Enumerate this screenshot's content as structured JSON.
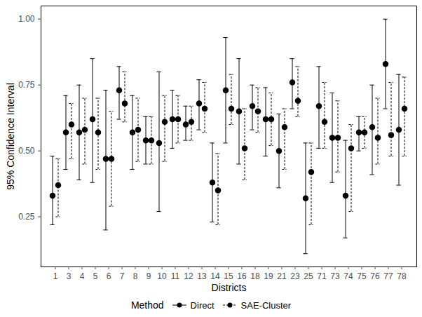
{
  "chart_data": {
    "type": "errorbar",
    "xlabel": "Districts",
    "ylabel": "95% Confidence Interval",
    "legend_title": "Method",
    "legend": "bottom",
    "grid": false,
    "categories": [
      "1",
      "3",
      "4",
      "5",
      "6",
      "7",
      "8",
      "9",
      "10",
      "11",
      "12",
      "13",
      "14",
      "15",
      "16",
      "18",
      "19",
      "21",
      "23",
      "25",
      "71",
      "73",
      "74",
      "75",
      "76",
      "77",
      "78"
    ],
    "ylim": [
      0.06,
      1.05
    ],
    "yticks": [
      {
        "value": 0.25,
        "label": "0.25"
      },
      {
        "value": 0.5,
        "label": "0.50"
      },
      {
        "value": 0.75,
        "label": "0.75"
      },
      {
        "value": 1.0,
        "label": "1.00"
      }
    ],
    "series": [
      {
        "name": "Direct",
        "color": "#000000",
        "marker": "circle",
        "line_style": "solid",
        "values": [
          0.33,
          0.57,
          0.57,
          0.62,
          0.47,
          0.73,
          0.57,
          0.54,
          0.53,
          0.62,
          0.6,
          0.68,
          0.38,
          0.73,
          0.65,
          0.67,
          0.62,
          0.5,
          0.76,
          0.32,
          0.67,
          0.55,
          0.33,
          0.57,
          0.59,
          0.83,
          0.58
        ],
        "lower": [
          0.22,
          0.43,
          0.39,
          0.38,
          0.2,
          0.62,
          0.43,
          0.45,
          0.27,
          0.51,
          0.54,
          0.58,
          0.23,
          0.53,
          0.45,
          0.58,
          0.48,
          0.36,
          0.66,
          0.11,
          0.51,
          0.38,
          0.17,
          0.5,
          0.41,
          0.66,
          0.37
        ],
        "upper": [
          0.48,
          0.71,
          0.75,
          0.85,
          0.73,
          0.82,
          0.71,
          0.63,
          0.8,
          0.73,
          0.67,
          0.77,
          0.53,
          0.93,
          0.85,
          0.75,
          0.74,
          0.64,
          0.85,
          0.53,
          0.82,
          0.72,
          0.54,
          0.63,
          0.75,
          1.0,
          0.79
        ]
      },
      {
        "name": "SAE-Cluster",
        "color": "#000000",
        "marker": "circle",
        "line_style": "dashed",
        "values": [
          0.37,
          0.6,
          0.58,
          0.57,
          0.47,
          0.68,
          0.58,
          0.54,
          0.61,
          0.62,
          0.61,
          0.66,
          0.35,
          0.66,
          0.51,
          0.65,
          0.62,
          0.59,
          0.69,
          0.42,
          0.61,
          0.55,
          0.51,
          0.57,
          0.55,
          0.56,
          0.66
        ],
        "lower": [
          0.25,
          0.47,
          0.45,
          0.43,
          0.29,
          0.61,
          0.46,
          0.45,
          0.46,
          0.53,
          0.54,
          0.57,
          0.22,
          0.6,
          0.39,
          0.57,
          0.52,
          0.43,
          0.63,
          0.22,
          0.51,
          0.42,
          0.27,
          0.51,
          0.45,
          0.48,
          0.48
        ],
        "upper": [
          0.47,
          0.68,
          0.7,
          0.7,
          0.65,
          0.8,
          0.7,
          0.63,
          0.71,
          0.71,
          0.67,
          0.76,
          0.49,
          0.79,
          0.66,
          0.74,
          0.72,
          0.66,
          0.82,
          0.53,
          0.76,
          0.69,
          0.6,
          0.63,
          0.7,
          0.76,
          0.78
        ]
      }
    ]
  }
}
